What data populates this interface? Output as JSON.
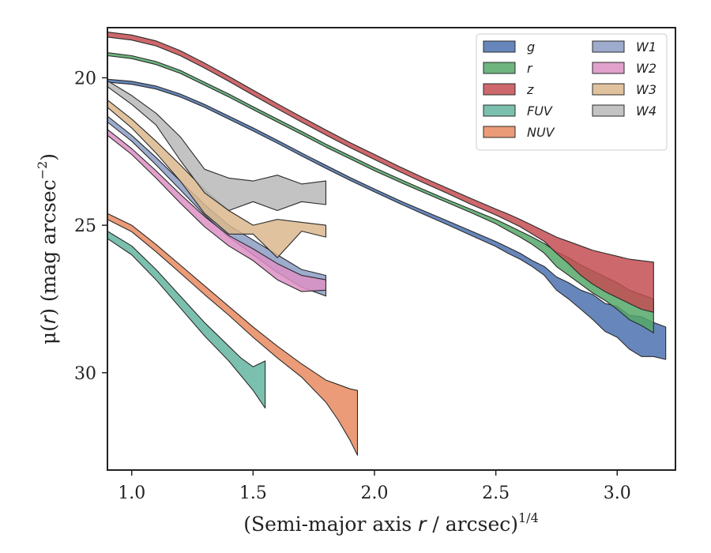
{
  "chart_data": {
    "type": "area",
    "xlabel_main": "(Semi-major axis ",
    "xlabel_var": "r",
    "xlabel_unit": " / arcsec)",
    "xlabel_exp": "1/4",
    "ylabel_main": "μ(",
    "ylabel_var": "r",
    "ylabel_unit": ") (mag arcsec",
    "ylabel_exp": "−2",
    "ylabel_close": ")",
    "xlim": [
      0.9,
      3.24
    ],
    "ylim": [
      33.3,
      18.3
    ],
    "y_inverted": true,
    "xticks": [
      1.0,
      1.5,
      2.0,
      2.5,
      3.0
    ],
    "xtick_labels": [
      "1.0",
      "1.5",
      "2.0",
      "2.5",
      "3.0"
    ],
    "yticks": [
      20,
      25,
      30
    ],
    "ytick_labels": [
      "20",
      "25",
      "30"
    ],
    "grid": false,
    "legend_placement": "top-right",
    "series": [
      {
        "name": "g",
        "color": "#4c72b0",
        "x": [
          0.9,
          1.0,
          1.1,
          1.2,
          1.3,
          1.4,
          1.5,
          1.6,
          1.7,
          1.8,
          1.9,
          2.0,
          2.1,
          2.2,
          2.3,
          2.4,
          2.5,
          2.55,
          2.6,
          2.65,
          2.7,
          2.75,
          2.8,
          2.85,
          2.9,
          2.95,
          3.0,
          3.05,
          3.1,
          3.15,
          3.2
        ],
        "y_lo": [
          20.05,
          20.12,
          20.28,
          20.55,
          20.9,
          21.3,
          21.7,
          22.12,
          22.55,
          22.97,
          23.38,
          23.77,
          24.15,
          24.5,
          24.85,
          25.2,
          25.55,
          25.75,
          25.95,
          26.2,
          26.4,
          26.75,
          26.95,
          27.2,
          27.35,
          27.65,
          27.75,
          28.05,
          28.1,
          28.3,
          28.45
        ],
        "y_hi": [
          20.15,
          20.22,
          20.38,
          20.65,
          21.0,
          21.4,
          21.8,
          22.22,
          22.65,
          23.07,
          23.48,
          23.87,
          24.25,
          24.62,
          24.98,
          25.35,
          25.72,
          25.95,
          26.15,
          26.4,
          26.7,
          27.2,
          27.5,
          27.85,
          28.2,
          28.6,
          28.8,
          29.2,
          29.45,
          29.45,
          29.55
        ]
      },
      {
        "name": "r",
        "color": "#55a868",
        "x": [
          0.9,
          1.0,
          1.1,
          1.2,
          1.3,
          1.4,
          1.5,
          1.6,
          1.7,
          1.8,
          1.9,
          2.0,
          2.1,
          2.2,
          2.3,
          2.4,
          2.5,
          2.55,
          2.6,
          2.65,
          2.7,
          2.75,
          2.8,
          2.85,
          2.9,
          2.95,
          3.0,
          3.05,
          3.1,
          3.15
        ],
        "y_lo": [
          19.15,
          19.25,
          19.45,
          19.75,
          20.15,
          20.55,
          20.98,
          21.4,
          21.82,
          22.25,
          22.65,
          23.05,
          23.42,
          23.78,
          24.13,
          24.47,
          24.8,
          25.0,
          25.2,
          25.4,
          25.62,
          25.9,
          26.1,
          26.35,
          26.55,
          26.75,
          26.95,
          27.2,
          27.35,
          27.5
        ],
        "y_hi": [
          19.25,
          19.35,
          19.55,
          19.85,
          20.25,
          20.65,
          21.08,
          21.5,
          21.92,
          22.35,
          22.75,
          23.15,
          23.52,
          23.88,
          24.23,
          24.58,
          24.95,
          25.18,
          25.4,
          25.65,
          25.95,
          26.4,
          26.7,
          27.0,
          27.3,
          27.55,
          27.85,
          28.2,
          28.4,
          28.65
        ]
      },
      {
        "name": "z",
        "color": "#c44e52",
        "x": [
          0.9,
          1.0,
          1.1,
          1.2,
          1.3,
          1.4,
          1.5,
          1.6,
          1.7,
          1.8,
          1.9,
          2.0,
          2.1,
          2.2,
          2.3,
          2.4,
          2.5,
          2.55,
          2.6,
          2.65,
          2.7,
          2.75,
          2.8,
          2.85,
          2.9,
          2.95,
          3.0,
          3.05,
          3.1,
          3.15
        ],
        "y_lo": [
          18.45,
          18.55,
          18.75,
          19.08,
          19.5,
          19.95,
          20.42,
          20.88,
          21.33,
          21.77,
          22.2,
          22.6,
          23.0,
          23.38,
          23.74,
          24.1,
          24.45,
          24.62,
          24.8,
          25.0,
          25.2,
          25.4,
          25.55,
          25.7,
          25.85,
          25.95,
          26.05,
          26.15,
          26.2,
          26.25
        ],
        "y_hi": [
          18.62,
          18.72,
          18.92,
          19.25,
          19.67,
          20.12,
          20.59,
          21.05,
          21.5,
          21.94,
          22.37,
          22.77,
          23.17,
          23.55,
          23.92,
          24.3,
          24.65,
          24.85,
          25.05,
          25.3,
          25.55,
          25.95,
          26.3,
          26.7,
          27.0,
          27.25,
          27.45,
          27.65,
          27.85,
          27.95
        ]
      },
      {
        "name": "FUV",
        "color": "#64b5a0",
        "x": [
          0.9,
          1.0,
          1.1,
          1.2,
          1.3,
          1.4,
          1.45,
          1.5,
          1.55
        ],
        "y_lo": [
          25.2,
          25.7,
          26.5,
          27.4,
          28.3,
          29.1,
          29.5,
          29.8,
          29.6
        ],
        "y_hi": [
          25.45,
          26.0,
          26.85,
          27.8,
          28.75,
          29.6,
          30.1,
          30.6,
          31.2
        ]
      },
      {
        "name": "NUV",
        "color": "#e8895f",
        "x": [
          0.9,
          1.0,
          1.1,
          1.2,
          1.3,
          1.4,
          1.5,
          1.6,
          1.7,
          1.8,
          1.85,
          1.9,
          1.93
        ],
        "y_lo": [
          24.6,
          25.0,
          25.65,
          26.35,
          27.05,
          27.75,
          28.45,
          29.1,
          29.7,
          30.25,
          30.4,
          30.55,
          30.6
        ],
        "y_hi": [
          24.8,
          25.22,
          25.9,
          26.62,
          27.35,
          28.05,
          28.8,
          29.5,
          30.15,
          31.0,
          31.6,
          32.3,
          32.8
        ]
      },
      {
        "name": "W1",
        "color": "#8c9cc4",
        "x": [
          0.9,
          1.0,
          1.1,
          1.2,
          1.3,
          1.4,
          1.5,
          1.6,
          1.7,
          1.8
        ],
        "y_lo": [
          21.3,
          21.95,
          22.7,
          23.5,
          24.3,
          25.0,
          25.5,
          26.0,
          26.5,
          26.7
        ],
        "y_hi": [
          21.5,
          22.15,
          22.95,
          23.8,
          24.65,
          25.4,
          26.0,
          26.6,
          27.1,
          27.4
        ]
      },
      {
        "name": "W2",
        "color": "#dd8fc4",
        "x": [
          0.9,
          1.0,
          1.1,
          1.2,
          1.3,
          1.4,
          1.5,
          1.6,
          1.7,
          1.8
        ],
        "y_lo": [
          21.75,
          22.4,
          23.15,
          23.95,
          24.7,
          25.35,
          25.8,
          26.3,
          26.7,
          26.85
        ],
        "y_hi": [
          21.95,
          22.6,
          23.4,
          24.25,
          25.05,
          25.7,
          26.2,
          26.85,
          27.25,
          27.2
        ]
      },
      {
        "name": "W3",
        "color": "#dbb98d",
        "x": [
          0.9,
          1.0,
          1.1,
          1.2,
          1.3,
          1.4,
          1.5,
          1.6,
          1.7,
          1.8
        ],
        "y_lo": [
          20.75,
          21.4,
          22.15,
          22.95,
          23.8,
          24.5,
          25.0,
          24.8,
          24.9,
          25.0
        ],
        "y_hi": [
          21.0,
          21.7,
          22.55,
          23.5,
          24.6,
          25.3,
          25.3,
          26.1,
          25.2,
          25.4
        ]
      },
      {
        "name": "W4",
        "color": "#b8b8b8",
        "x": [
          0.9,
          1.0,
          1.1,
          1.2,
          1.3,
          1.4,
          1.5,
          1.6,
          1.7,
          1.8
        ],
        "y_lo": [
          20.1,
          20.6,
          21.2,
          22.0,
          23.1,
          23.4,
          23.5,
          23.3,
          23.6,
          23.5
        ],
        "y_hi": [
          20.3,
          20.9,
          21.6,
          22.8,
          23.9,
          24.5,
          24.2,
          24.5,
          24.2,
          24.3
        ]
      }
    ]
  }
}
